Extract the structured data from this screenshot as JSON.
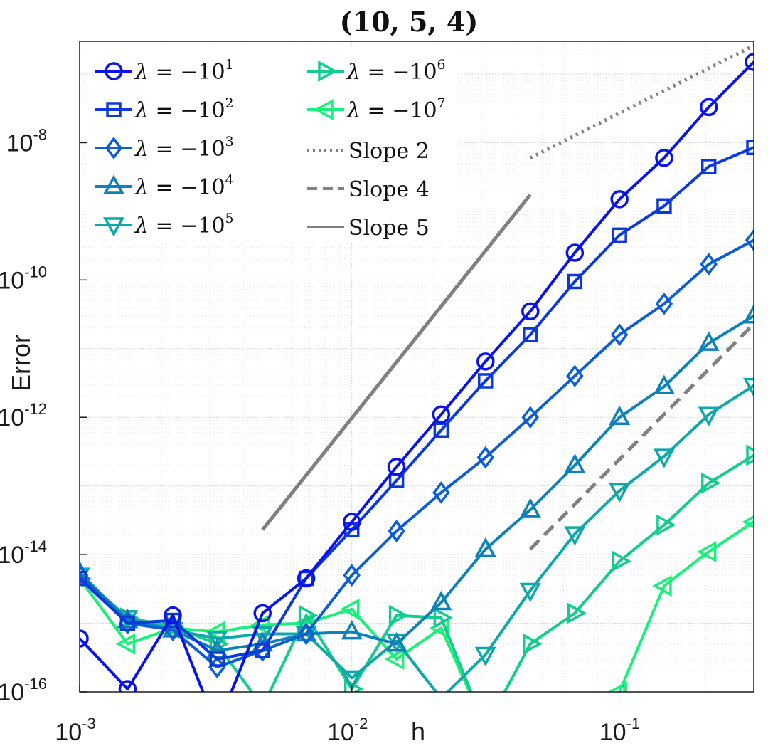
{
  "chart_data": {
    "type": "line",
    "title": "(10, 5, 4)",
    "xlabel": "h",
    "ylabel": "Error",
    "xscale": "log",
    "yscale": "log",
    "xlim": [
      0.001,
      0.3
    ],
    "ylim": [
      1e-16,
      3e-07
    ],
    "grid": true,
    "legend_location": "top-left",
    "x_ticks": [
      {
        "base": "10",
        "exp": "-3"
      },
      {
        "base": "10",
        "exp": "-2"
      },
      {
        "base": "10",
        "exp": "-1"
      }
    ],
    "y_ticks": [
      {
        "base": "10",
        "exp": "-16"
      },
      {
        "base": "10",
        "exp": "-14"
      },
      {
        "base": "10",
        "exp": "-12"
      },
      {
        "base": "10",
        "exp": "-10"
      },
      {
        "base": "10",
        "exp": "-8"
      }
    ],
    "x": [
      0.001,
      0.0015,
      0.0022,
      0.0032,
      0.0047,
      0.0068,
      0.01,
      0.0146,
      0.0213,
      0.031,
      0.0453,
      0.066,
      0.0963,
      0.1405,
      0.205,
      0.3
    ],
    "series": [
      {
        "name": "λ = −10^1",
        "label_prefix": "λ = −10",
        "label_exp": "1",
        "color": "#0a14e6",
        "marker": "circle",
        "values": [
          6e-16,
          1.1e-16,
          1.3e-15,
          3e-17,
          1.4e-15,
          4.5e-15,
          3e-14,
          1.9e-13,
          1.1e-12,
          6.5e-12,
          3.5e-11,
          2.5e-10,
          1.5e-09,
          6e-09,
          3.3e-08,
          1.5e-07
        ]
      },
      {
        "name": "λ = −10^2",
        "label_prefix": "λ = −10",
        "label_exp": "2",
        "color": "#0b39dc",
        "marker": "square",
        "values": [
          4.5e-15,
          1e-15,
          1.1e-15,
          3e-16,
          4e-16,
          4.5e-15,
          2.3e-14,
          1.2e-13,
          6.5e-13,
          3.4e-12,
          1.6e-11,
          9.5e-11,
          4.5e-10,
          1.2e-09,
          4.5e-09,
          8.5e-09
        ]
      },
      {
        "name": "λ = −10^3",
        "label_prefix": "λ = −10",
        "label_exp": "3",
        "color": "#0d5ed0",
        "marker": "diamond",
        "values": [
          5e-15,
          1e-15,
          8e-16,
          2.3e-16,
          4e-16,
          7e-16,
          5e-15,
          2.2e-14,
          8e-14,
          2.6e-13,
          1e-12,
          4e-12,
          1.6e-11,
          4.5e-11,
          1.7e-10,
          3.8e-10
        ]
      },
      {
        "name": "λ = −10^4",
        "label_prefix": "λ = −10",
        "label_exp": "4",
        "color": "#0e82b8",
        "marker": "triangle-up",
        "values": [
          5.5e-15,
          1.1e-15,
          8e-16,
          4e-16,
          5e-16,
          7e-16,
          7.5e-16,
          5e-16,
          2e-15,
          1.2e-14,
          4.5e-14,
          2e-13,
          1e-12,
          2.8e-12,
          1.2e-11,
          3e-11
        ]
      },
      {
        "name": "λ = −10^5",
        "label_prefix": "λ = −10",
        "label_exp": "5",
        "color": "#0fa8a8",
        "marker": "triangle-down",
        "values": [
          5e-15,
          1.2e-15,
          8e-16,
          6e-16,
          7e-16,
          7e-16,
          1.6e-16,
          5.5e-16,
          8e-17,
          3.5e-16,
          3e-15,
          2e-14,
          8.5e-14,
          2.7e-13,
          1.1e-12,
          2.9e-12
        ]
      },
      {
        "name": "λ = −10^6",
        "label_prefix": "λ = −10",
        "label_exp": "6",
        "color": "#13cc8e",
        "marker": "triangle-right",
        "values": [
          4.5e-15,
          1.2e-15,
          9e-16,
          5e-16,
          6e-17,
          1.3e-15,
          1.1e-16,
          1.3e-15,
          1.2e-15,
          3e-17,
          5e-16,
          1.4e-15,
          8e-15,
          2.7e-14,
          1.1e-13,
          2.8e-13
        ]
      },
      {
        "name": "λ = −10^7",
        "label_prefix": "λ = −10",
        "label_exp": "7",
        "color": "#1af07a",
        "marker": "triangle-left",
        "values": [
          4.5e-15,
          5e-16,
          8.5e-16,
          7.5e-16,
          9.5e-16,
          1e-15,
          1.6e-15,
          3e-16,
          8.5e-16,
          3e-17,
          null,
          null,
          1e-16,
          3.5e-15,
          1.1e-14,
          3e-14
        ]
      }
    ],
    "reference_lines": [
      {
        "name": "Slope 2",
        "style": "dotted",
        "color": "#808080",
        "x": [
          0.0453,
          0.3
        ],
        "y": [
          6e-09,
          2.6e-07
        ]
      },
      {
        "name": "Slope 4",
        "style": "dashed",
        "color": "#808080",
        "x": [
          0.0453,
          0.3
        ],
        "y": [
          1.2e-14,
          2.3e-11
        ]
      },
      {
        "name": "Slope 5",
        "style": "solid",
        "color": "#808080",
        "x": [
          0.0047,
          0.0453
        ],
        "y": [
          2.3e-14,
          1.75e-09
        ]
      }
    ]
  }
}
